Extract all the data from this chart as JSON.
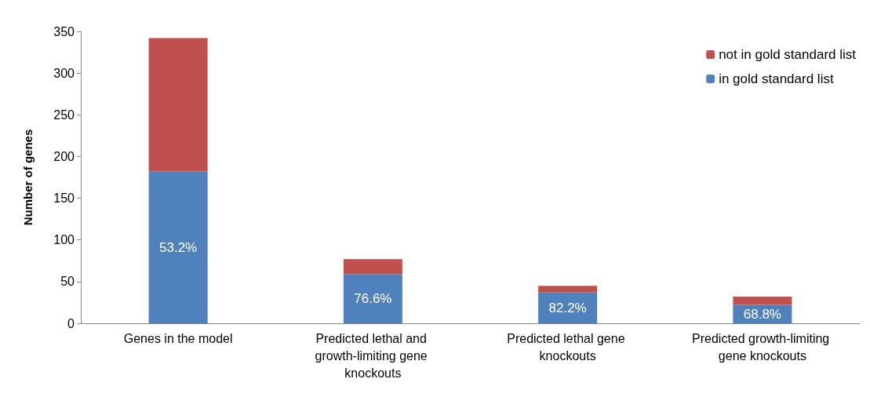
{
  "chart_data": {
    "type": "bar",
    "stacked": true,
    "ylabel": "Number of genes",
    "categories": [
      "Genes in the model",
      "Predicted lethal and growth-limiting gene knockouts",
      "Predicted lethal gene knockouts",
      "Predicted growth-limiting gene knockouts"
    ],
    "series": [
      {
        "name": "in gold standard list",
        "color": "#4f81bd",
        "values": [
          182,
          59,
          37,
          22
        ]
      },
      {
        "name": "not in gold standard list",
        "color": "#c0504d",
        "values": [
          160,
          18,
          8,
          10
        ]
      }
    ],
    "ylim": [
      0,
      350
    ],
    "yticks": [
      0,
      50,
      100,
      150,
      200,
      250,
      300,
      350
    ],
    "annotations": [
      "53.2%",
      "76.6%",
      "82.2%",
      "68.8%"
    ],
    "grid": false,
    "legend": "top right"
  }
}
